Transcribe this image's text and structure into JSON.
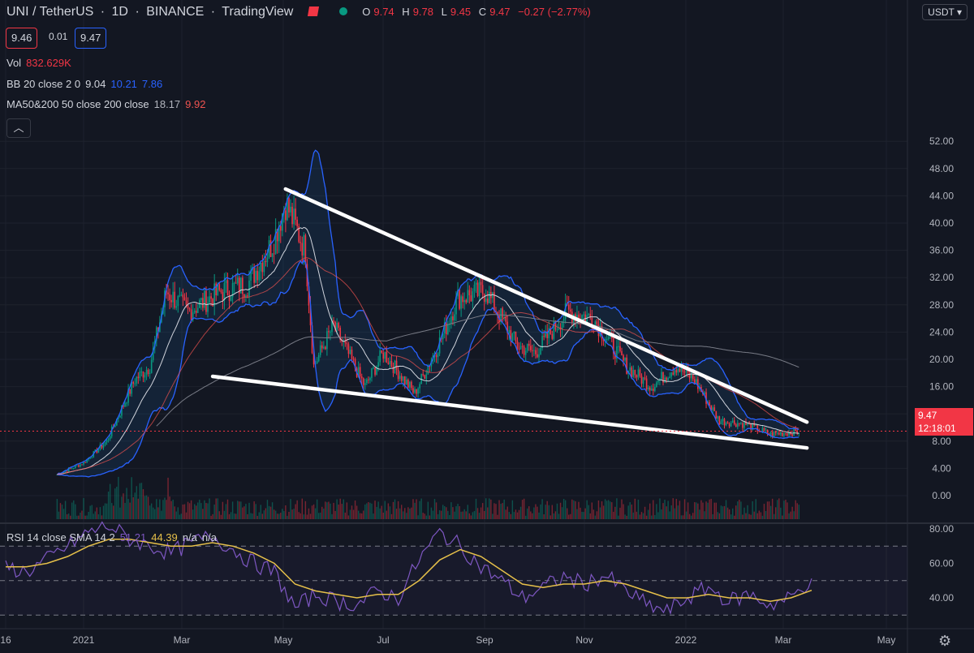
{
  "header": {
    "symbol": "UNI / TetherUS",
    "interval": "1D",
    "exchange": "BINANCE",
    "platform": "TradingView",
    "ohlc": {
      "o_label": "O",
      "o": "9.74",
      "h_label": "H",
      "h": "9.78",
      "l_label": "L",
      "l": "9.45",
      "c_label": "C",
      "c": "9.47",
      "change": "−0.27 (−2.77%)"
    }
  },
  "trade": {
    "bid": "9.46",
    "spread": "0.01",
    "ask": "9.47"
  },
  "legend": {
    "vol_label": "Vol",
    "vol_value": "832.629K",
    "bb_label": "BB 20 close 2 0",
    "bb_mid": "9.04",
    "bb_up": "10.21",
    "bb_low": "7.86",
    "ma_label": "MA50&200 50 close 200 close",
    "ma50": "18.17",
    "ma200": "9.92"
  },
  "currency_button": "USDT",
  "collapse_icon": "chevron-up-icon",
  "last_price": {
    "value": "9.47",
    "countdown": "12:18:01"
  },
  "rsi_legend": {
    "label": "RSI 14 close SMA 14 2",
    "rsi": "51.21",
    "sma": "44.39",
    "na1": "n/a",
    "na2": "n/a"
  },
  "colors": {
    "bg": "#131722",
    "up": "#089981",
    "down": "#f23645",
    "bb": "#2962ff",
    "ma50": "#b2b5be",
    "ma200": "#ef5350",
    "rsi": "#7e57c2",
    "rsi_sma": "#e6c04a",
    "trend": "#ffffff"
  },
  "chart_data": [
    {
      "type": "candlestick",
      "title": "UNI / TetherUS",
      "x_ticks": [
        "16",
        "2021",
        "Mar",
        "May",
        "Jul",
        "Sep",
        "Nov",
        "2022",
        "Mar",
        "May"
      ],
      "y_ticks": [
        "52.00",
        "48.00",
        "44.00",
        "40.00",
        "36.00",
        "32.00",
        "28.00",
        "24.00",
        "20.00",
        "16.00",
        "12.00",
        "8.00",
        "4.00",
        "0.00"
      ],
      "ylim": [
        0,
        52
      ],
      "approx_close_path": [
        {
          "date": "2020-12-16",
          "close": 3.1
        },
        {
          "date": "2021-01-01",
          "close": 4.8
        },
        {
          "date": "2021-01-15",
          "close": 8
        },
        {
          "date": "2021-02-01",
          "close": 17
        },
        {
          "date": "2021-02-10",
          "close": 19
        },
        {
          "date": "2021-02-20",
          "close": 30
        },
        {
          "date": "2021-03-05",
          "close": 27
        },
        {
          "date": "2021-03-25",
          "close": 30
        },
        {
          "date": "2021-04-10",
          "close": 31
        },
        {
          "date": "2021-04-25",
          "close": 37
        },
        {
          "date": "2021-05-03",
          "close": 43
        },
        {
          "date": "2021-05-15",
          "close": 36
        },
        {
          "date": "2021-05-20",
          "close": 19
        },
        {
          "date": "2021-06-01",
          "close": 25
        },
        {
          "date": "2021-06-20",
          "close": 16
        },
        {
          "date": "2021-07-01",
          "close": 21
        },
        {
          "date": "2021-07-20",
          "close": 15
        },
        {
          "date": "2021-08-05",
          "close": 23
        },
        {
          "date": "2021-08-15",
          "close": 29
        },
        {
          "date": "2021-09-01",
          "close": 30
        },
        {
          "date": "2021-09-20",
          "close": 22
        },
        {
          "date": "2021-10-01",
          "close": 21
        },
        {
          "date": "2021-10-20",
          "close": 27
        },
        {
          "date": "2021-11-05",
          "close": 26
        },
        {
          "date": "2021-11-25",
          "close": 19
        },
        {
          "date": "2021-12-10",
          "close": 16
        },
        {
          "date": "2021-12-25",
          "close": 19
        },
        {
          "date": "2022-01-05",
          "close": 17
        },
        {
          "date": "2022-01-20",
          "close": 11
        },
        {
          "date": "2022-02-05",
          "close": 10.5
        },
        {
          "date": "2022-02-20",
          "close": 9
        },
        {
          "date": "2022-03-10",
          "close": 9.47
        }
      ],
      "trendlines": [
        {
          "from": {
            "date": "2021-05-03",
            "price": 45
          },
          "to": {
            "date": "2022-03-14",
            "price": 10.8
          }
        },
        {
          "from": {
            "date": "2021-03-20",
            "price": 17.5
          },
          "to": {
            "date": "2022-03-14",
            "price": 7
          }
        }
      ],
      "last_price": 9.47
    },
    {
      "type": "line",
      "title": "RSI 14 close SMA 14 2",
      "y_ticks": [
        "80.00",
        "60.00",
        "40.00"
      ],
      "ylim": [
        26,
        86
      ],
      "bands": [
        70,
        50,
        30
      ],
      "series": [
        {
          "name": "RSI",
          "values": [
            58,
            55,
            62,
            70,
            78,
            82,
            74,
            70,
            66,
            72,
            76,
            68,
            60,
            55,
            34,
            42,
            38,
            36,
            44,
            40,
            62,
            78,
            70,
            58,
            50,
            40,
            46,
            52,
            48,
            53,
            44,
            36,
            32,
            40,
            46,
            38,
            42,
            36,
            40,
            51.21
          ]
        },
        {
          "name": "SMA",
          "values": [
            58,
            58,
            60,
            64,
            70,
            74,
            74,
            72,
            70,
            70,
            72,
            70,
            66,
            60,
            48,
            44,
            42,
            40,
            42,
            42,
            50,
            62,
            68,
            64,
            56,
            48,
            46,
            48,
            48,
            50,
            48,
            44,
            40,
            40,
            42,
            40,
            40,
            38,
            40,
            44.39
          ]
        }
      ]
    }
  ]
}
